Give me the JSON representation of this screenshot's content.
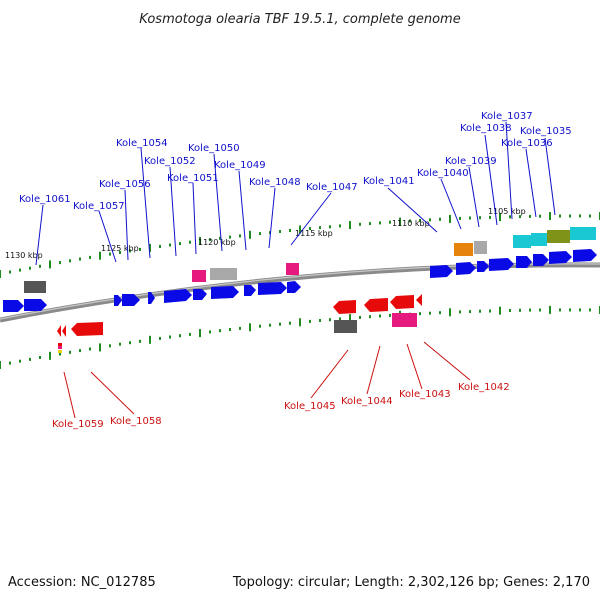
{
  "title": "Kosmotoga olearia TBF 19.5.1, complete genome",
  "footer": {
    "accession": "Accession: NC_012785",
    "summary": "Topology: circular; Length: 2,302,126 bp; Genes: 2,170"
  },
  "colors": {
    "forward_gene": "#0a0ae6",
    "reverse_gene": "#e60a0a",
    "rrna_pink": "#e6197f",
    "grey_feature": "#a8a8a8",
    "dark_grey_feature": "#555555",
    "orange_feature": "#e6830a",
    "cyan_feature": "#19c8d2",
    "olive_feature": "#7f9319",
    "tick_green": "#1f8a1f",
    "backbone": "#8a8a8a",
    "forward_label": "#1010cc",
    "reverse_label": "#cc1010"
  },
  "position_marks": [
    {
      "label": "1130 kbp",
      "id": "pos-1130"
    },
    {
      "label": "1125 kbp",
      "id": "pos-1125"
    },
    {
      "label": "1120 kbp",
      "id": "pos-1120"
    },
    {
      "label": "1115 kbp",
      "id": "pos-1115"
    },
    {
      "label": "1110 kbp",
      "id": "pos-1110"
    },
    {
      "label": "1105 kbp",
      "id": "pos-1105"
    }
  ],
  "forward_labels": [
    {
      "id": "Kole_1061",
      "text": "Kole_1061"
    },
    {
      "id": "Kole_1057",
      "text": "Kole_1057"
    },
    {
      "id": "Kole_1056",
      "text": "Kole_1056"
    },
    {
      "id": "Kole_1054",
      "text": "Kole_1054"
    },
    {
      "id": "Kole_1052",
      "text": "Kole_1052"
    },
    {
      "id": "Kole_1051",
      "text": "Kole_1051"
    },
    {
      "id": "Kole_1050",
      "text": "Kole_1050"
    },
    {
      "id": "Kole_1049",
      "text": "Kole_1049"
    },
    {
      "id": "Kole_1048",
      "text": "Kole_1048"
    },
    {
      "id": "Kole_1047",
      "text": "Kole_1047"
    },
    {
      "id": "Kole_1041",
      "text": "Kole_1041"
    },
    {
      "id": "Kole_1040",
      "text": "Kole_1040"
    },
    {
      "id": "Kole_1039",
      "text": "Kole_1039"
    },
    {
      "id": "Kole_1038",
      "text": "Kole_1038"
    },
    {
      "id": "Kole_1037",
      "text": "Kole_1037"
    },
    {
      "id": "Kole_1036",
      "text": "Kole_1036"
    },
    {
      "id": "Kole_1035",
      "text": "Kole_1035"
    }
  ],
  "reverse_labels": [
    {
      "id": "Kole_1059",
      "text": "Kole_1059"
    },
    {
      "id": "Kole_1058",
      "text": "Kole_1058"
    },
    {
      "id": "Kole_1045",
      "text": "Kole_1045"
    },
    {
      "id": "Kole_1044",
      "text": "Kole_1044"
    },
    {
      "id": "Kole_1043",
      "text": "Kole_1043"
    },
    {
      "id": "Kole_1042",
      "text": "Kole_1042"
    }
  ]
}
